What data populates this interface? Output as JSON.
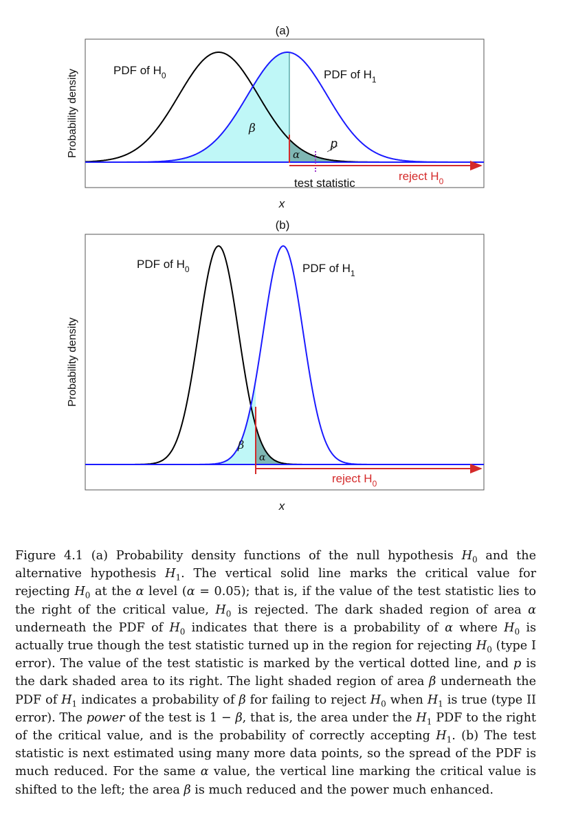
{
  "figure": {
    "panels": [
      {
        "label": "(a)",
        "ylabel": "Probability density",
        "xlabel": "x",
        "h0_label": "PDF of H",
        "h0_sub": "0",
        "h1_label": "PDF of H",
        "h1_sub": "1",
        "beta": "β",
        "alpha": "α",
        "p": "p",
        "test_statistic": "test statistic",
        "reject_label": "reject H",
        "reject_sub": "0"
      },
      {
        "label": "(b)",
        "ylabel": "Probability density",
        "xlabel": "x",
        "h0_label": "PDF of H",
        "h0_sub": "0",
        "h1_label": "PDF of H",
        "h1_sub": "1",
        "beta": "β",
        "alpha": "α",
        "reject_label": "reject H",
        "reject_sub": "0"
      }
    ],
    "colors": {
      "h0_curve": "#000000",
      "h1_curve": "#1a1aff",
      "beta_fill": "#bff7f7",
      "alpha_fill": "#7fb7b4",
      "critical_line": "#d42a2a",
      "reject_arrow": "#d42a2a",
      "test_stat_line": "#9b30c8",
      "frame": "#555555"
    }
  },
  "caption": {
    "parts": [
      "Figure 4.1 (a) Probability density functions of the null hypothesis ",
      "H",
      "0",
      " and the alternative hypothesis ",
      "H",
      "1",
      ". The vertical solid line marks the critical value for rejecting ",
      "H",
      "0",
      " at the ",
      "α",
      " level (",
      "α",
      " = 0.05); that is, if the value of the test statistic lies to the right of the critical value, ",
      "H",
      "0",
      " is rejected. The dark shaded region of area ",
      "α",
      " underneath the PDF of ",
      "H",
      "0",
      " indicates that there is a probability of ",
      "α",
      " where ",
      "H",
      "0",
      " is actually true though the test statistic turned up in the region for rejecting ",
      "H",
      "0",
      " (type I error). The value of the test statistic is marked by the vertical dotted line, and ",
      "p",
      " is the dark shaded area to its right. The light shaded region of area ",
      "β",
      " underneath the PDF of ",
      "H",
      "1",
      " indicates a probability of ",
      "β",
      " for failing to reject ",
      "H",
      "0",
      " when ",
      "H",
      "1",
      " is true (type II error). The ",
      "power",
      " of the test is 1 − ",
      "β",
      ", that is, the area under the ",
      "H",
      "1",
      " PDF to the right of the critical value, and is the probability of correctly accepting ",
      "H",
      "1",
      ". (b) The test statistic is next estimated using many more data points, so the spread of the PDF is much reduced. For the same ",
      "α",
      " value, the vertical line marking the critical value is shifted to the left; the area ",
      "β",
      " is much reduced and the power much enhanced."
    ]
  }
}
